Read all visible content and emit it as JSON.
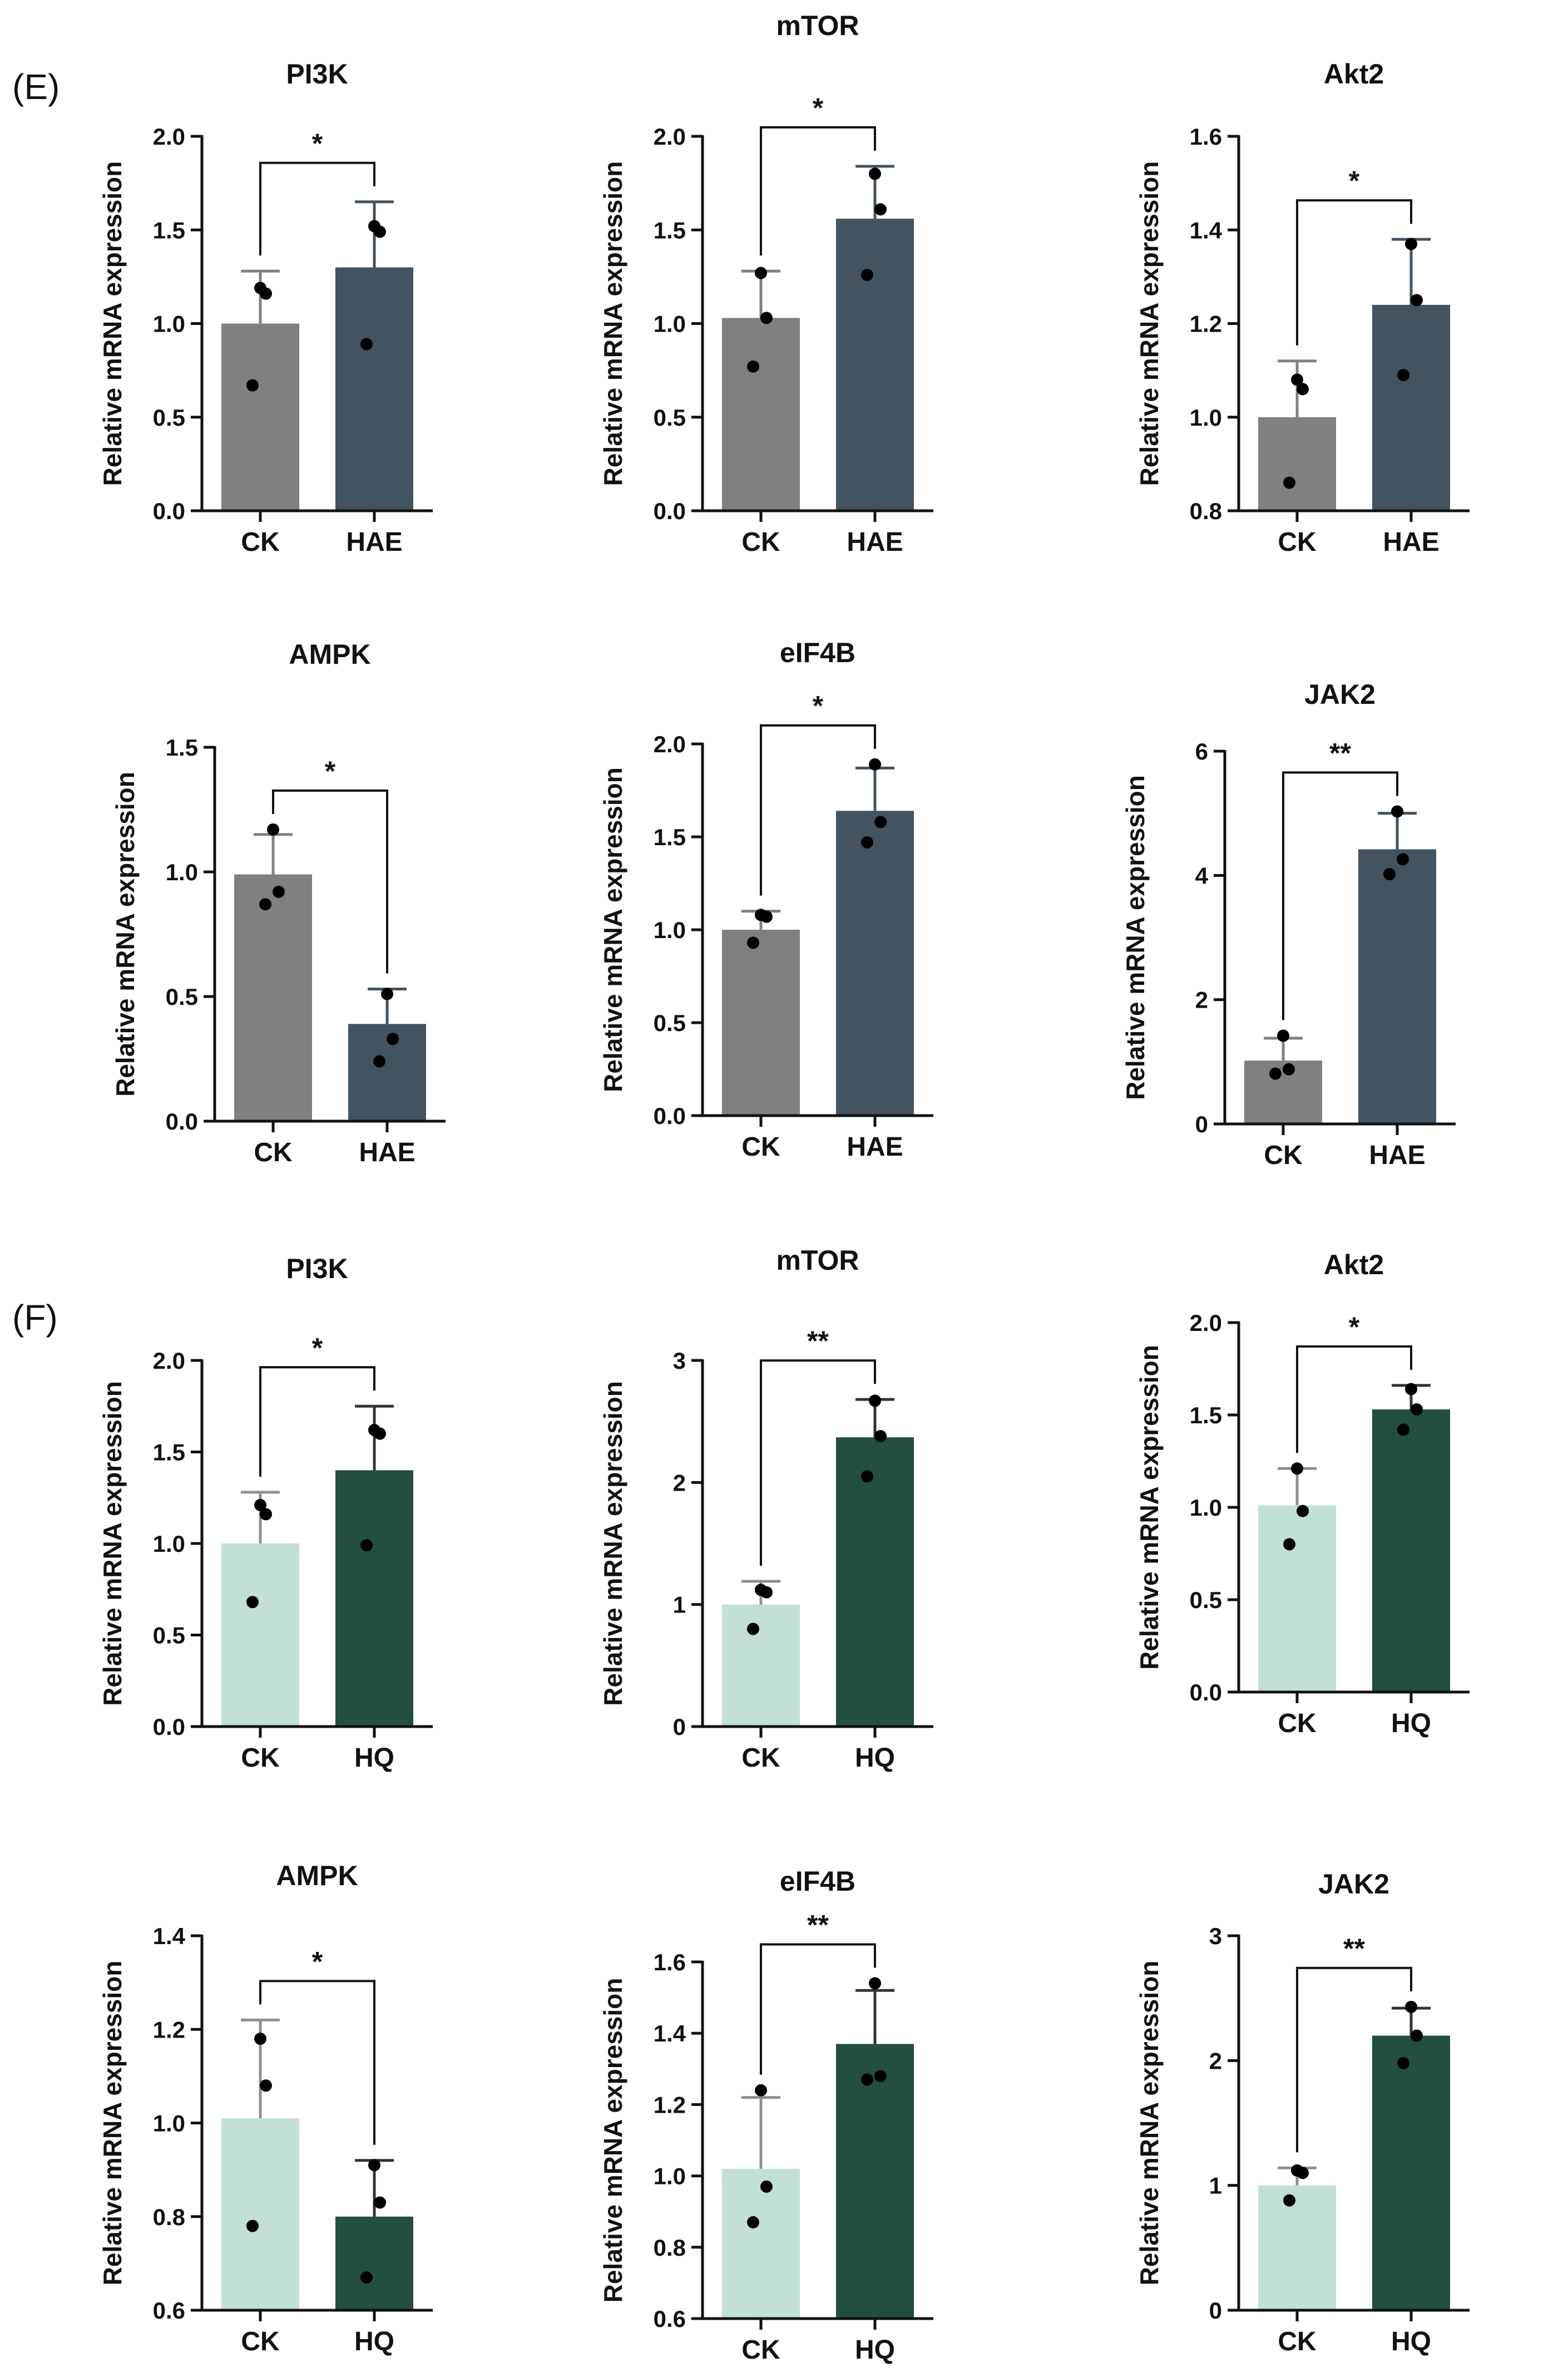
{
  "panels": [
    {
      "label": "(E)",
      "charts": [
        0,
        1,
        2,
        3,
        4,
        5
      ]
    },
    {
      "label": "(F)",
      "charts": [
        6,
        7,
        8,
        9,
        10,
        11
      ]
    }
  ],
  "colors": {
    "ck_E": "#808080",
    "treat_E": "#43535f",
    "ck_F": "#c3e0d6",
    "treat_F": "#234f3e",
    "axis": "#111111",
    "dot": "#000000"
  },
  "ylabel": "Relative mRNA expression",
  "chart_data": [
    {
      "type": "bar",
      "title": "PI3K",
      "categories": [
        "CK",
        "HAE"
      ],
      "ylim": [
        0,
        2.0
      ],
      "ticks": [
        "0.0",
        "0.5",
        "1.0",
        "1.5",
        "2.0"
      ],
      "means": [
        1.0,
        1.3
      ],
      "sd": [
        0.28,
        0.35
      ],
      "points": [
        [
          0.67,
          1.16,
          1.19
        ],
        [
          0.89,
          1.49,
          1.52
        ]
      ],
      "significance": "*"
    },
    {
      "type": "bar",
      "title": "mTOR",
      "categories": [
        "CK",
        "HAE"
      ],
      "ylim": [
        0,
        2.0
      ],
      "ticks": [
        "0.0",
        "0.5",
        "1.0",
        "1.5",
        "2.0"
      ],
      "means": [
        1.03,
        1.56
      ],
      "sd": [
        0.25,
        0.28
      ],
      "points": [
        [
          0.77,
          1.03,
          1.27
        ],
        [
          1.26,
          1.61,
          1.8
        ]
      ],
      "significance": "*"
    },
    {
      "type": "bar",
      "title": "Akt2",
      "categories": [
        "CK",
        "HAE"
      ],
      "ylim": [
        0.8,
        1.6
      ],
      "ticks": [
        "0.8",
        "1.0",
        "1.2",
        "1.4",
        "1.6"
      ],
      "means": [
        1.0,
        1.24
      ],
      "sd": [
        0.12,
        0.14
      ],
      "points": [
        [
          0.86,
          1.06,
          1.08
        ],
        [
          1.09,
          1.25,
          1.37
        ]
      ],
      "significance": "*"
    },
    {
      "type": "bar",
      "title": "AMPK",
      "categories": [
        "CK",
        "HAE"
      ],
      "ylim": [
        0,
        1.5
      ],
      "ticks": [
        "0.0",
        "0.5",
        "1.0",
        "1.5"
      ],
      "means": [
        0.99,
        0.39
      ],
      "sd": [
        0.16,
        0.14
      ],
      "points": [
        [
          0.87,
          0.92,
          1.17
        ],
        [
          0.24,
          0.33,
          0.51
        ]
      ],
      "significance": "*"
    },
    {
      "type": "bar",
      "title": "eIF4B",
      "categories": [
        "CK",
        "HAE"
      ],
      "ylim": [
        0,
        2.0
      ],
      "ticks": [
        "0.0",
        "0.5",
        "1.0",
        "1.5",
        "2.0"
      ],
      "means": [
        1.0,
        1.64
      ],
      "sd": [
        0.1,
        0.23
      ],
      "points": [
        [
          0.93,
          1.07,
          1.08
        ],
        [
          1.47,
          1.58,
          1.89
        ]
      ],
      "significance": "*"
    },
    {
      "type": "bar",
      "title": "JAK2",
      "categories": [
        "CK",
        "HAE"
      ],
      "ylim": [
        0,
        6
      ],
      "ticks": [
        "0",
        "2",
        "4",
        "6"
      ],
      "means": [
        1.02,
        4.42
      ],
      "sd": [
        0.36,
        0.58
      ],
      "points": [
        [
          0.81,
          0.88,
          1.42
        ],
        [
          4.02,
          4.26,
          5.03
        ]
      ],
      "significance": "**"
    },
    {
      "type": "bar",
      "title": "PI3K",
      "categories": [
        "CK",
        "HQ"
      ],
      "ylim": [
        0,
        2.0
      ],
      "ticks": [
        "0.0",
        "0.5",
        "1.0",
        "1.5",
        "2.0"
      ],
      "means": [
        1.0,
        1.4
      ],
      "sd": [
        0.28,
        0.35
      ],
      "points": [
        [
          0.68,
          1.16,
          1.21
        ],
        [
          0.99,
          1.6,
          1.62
        ]
      ],
      "significance": "*"
    },
    {
      "type": "bar",
      "title": "mTOR",
      "categories": [
        "CK",
        "HQ"
      ],
      "ylim": [
        0,
        3
      ],
      "ticks": [
        "0",
        "1",
        "2",
        "3"
      ],
      "means": [
        1.0,
        2.37
      ],
      "sd": [
        0.19,
        0.31
      ],
      "points": [
        [
          0.8,
          1.1,
          1.12
        ],
        [
          2.05,
          2.38,
          2.67
        ]
      ],
      "significance": "**"
    },
    {
      "type": "bar",
      "title": "Akt2",
      "categories": [
        "CK",
        "HQ"
      ],
      "ylim": [
        0,
        2.0
      ],
      "ticks": [
        "0.0",
        "0.5",
        "1.0",
        "1.5",
        "2.0"
      ],
      "means": [
        1.01,
        1.53
      ],
      "sd": [
        0.2,
        0.13
      ],
      "points": [
        [
          0.8,
          0.98,
          1.21
        ],
        [
          1.42,
          1.53,
          1.64
        ]
      ],
      "significance": "*"
    },
    {
      "type": "bar",
      "title": "AMPK",
      "categories": [
        "CK",
        "HQ"
      ],
      "ylim": [
        0.6,
        1.4
      ],
      "ticks": [
        "0.6",
        "0.8",
        "1.0",
        "1.2",
        "1.4"
      ],
      "means": [
        1.01,
        0.8
      ],
      "sd": [
        0.21,
        0.12
      ],
      "points": [
        [
          0.78,
          1.08,
          1.18
        ],
        [
          0.67,
          0.83,
          0.91
        ]
      ],
      "significance": "*"
    },
    {
      "type": "bar",
      "title": "eIF4B",
      "categories": [
        "CK",
        "HQ"
      ],
      "ylim": [
        0.6,
        1.6
      ],
      "ticks": [
        "0.6",
        "0.8",
        "1.0",
        "1.2",
        "1.4",
        "1.6"
      ],
      "means": [
        1.02,
        1.37
      ],
      "sd": [
        0.2,
        0.15
      ],
      "points": [
        [
          0.87,
          0.97,
          1.24
        ],
        [
          1.27,
          1.28,
          1.54
        ]
      ],
      "significance": "**"
    },
    {
      "type": "bar",
      "title": "JAK2",
      "categories": [
        "CK",
        "HQ"
      ],
      "ylim": [
        0,
        3
      ],
      "ticks": [
        "0",
        "1",
        "2",
        "3"
      ],
      "means": [
        1.0,
        2.2
      ],
      "sd": [
        0.14,
        0.22
      ],
      "points": [
        [
          0.88,
          1.1,
          1.12
        ],
        [
          1.98,
          2.2,
          2.43
        ]
      ],
      "significance": "**"
    }
  ]
}
